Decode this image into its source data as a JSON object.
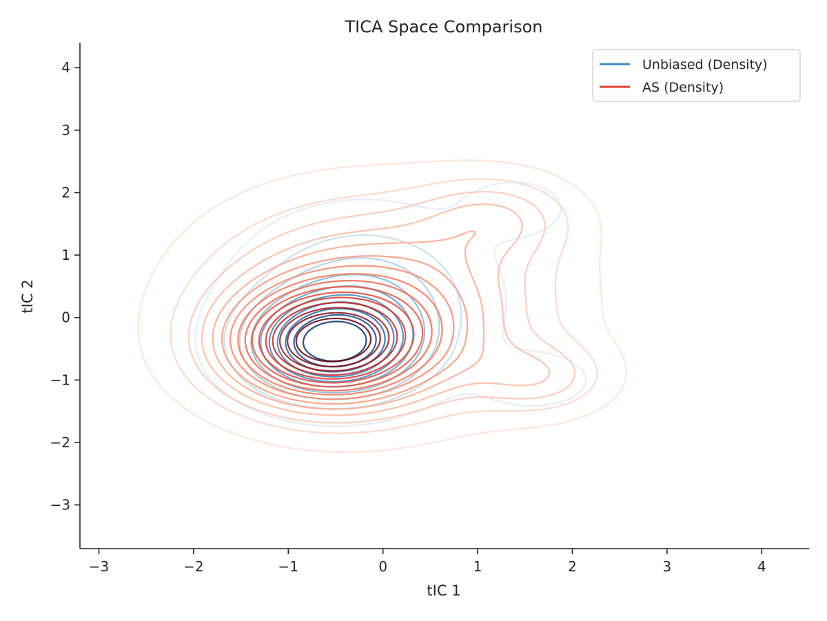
{
  "chart_data": {
    "type": "contour",
    "title": "TICA Space Comparison",
    "xlabel": "tIC 1",
    "ylabel": "tIC 2",
    "xlim": [
      -3.2,
      4.5
    ],
    "ylim": [
      -3.7,
      4.4
    ],
    "x_ticks": [
      -3,
      -2,
      -1,
      0,
      1,
      2,
      3,
      4
    ],
    "y_ticks": [
      -3,
      -2,
      -1,
      0,
      1,
      2,
      3,
      4
    ],
    "x_tick_labels": [
      "−3",
      "−2",
      "−1",
      "0",
      "1",
      "2",
      "3",
      "4"
    ],
    "y_tick_labels": [
      "−3",
      "−2",
      "−1",
      "0",
      "1",
      "2",
      "3",
      "4"
    ],
    "grid": false,
    "legend_position": "top-right",
    "series": [
      {
        "name": "Unbiased (Density)",
        "color": "#3a8bc2",
        "colormap": "Blues",
        "levels": 10,
        "modes": [
          {
            "center": [
              -0.55,
              -0.45
            ],
            "sigma": [
              0.55,
              0.5
            ],
            "weight": 1.0
          },
          {
            "center": [
              -0.2,
              0.3
            ],
            "sigma": [
              0.75,
              0.8
            ],
            "weight": 0.35
          },
          {
            "center": [
              1.4,
              1.75
            ],
            "sigma": [
              0.35,
              0.3
            ],
            "weight": 0.12
          },
          {
            "center": [
              1.6,
              -1.0
            ],
            "sigma": [
              0.4,
              0.3
            ],
            "weight": 0.12
          }
        ]
      },
      {
        "name": "AS (Density)",
        "color": "#e0402e",
        "colormap": "Reds",
        "levels": 16,
        "modes": [
          {
            "center": [
              -0.6,
              -0.45
            ],
            "sigma": [
              0.7,
              0.6
            ],
            "weight": 1.0
          },
          {
            "center": [
              -0.3,
              0.2
            ],
            "sigma": [
              1.05,
              1.05
            ],
            "weight": 0.45
          },
          {
            "center": [
              1.2,
              1.6
            ],
            "sigma": [
              0.55,
              0.45
            ],
            "weight": 0.22
          },
          {
            "center": [
              1.65,
              -0.95
            ],
            "sigma": [
              0.5,
              0.4
            ],
            "weight": 0.22
          },
          {
            "center": [
              0.8,
              0.3
            ],
            "sigma": [
              0.9,
              1.0
            ],
            "weight": 0.14
          }
        ]
      }
    ]
  }
}
